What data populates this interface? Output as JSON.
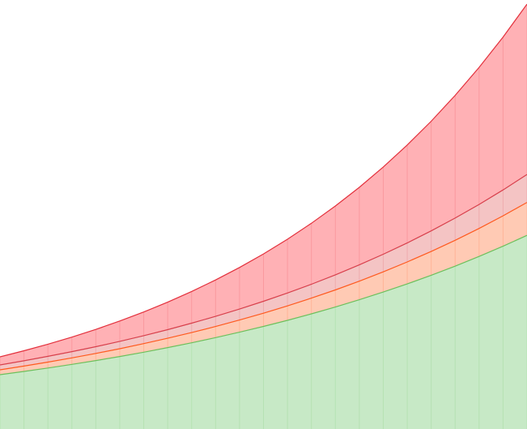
{
  "chart_data": {
    "type": "area",
    "x": [
      0,
      1,
      2,
      3,
      4,
      5,
      6,
      7,
      8,
      9,
      10,
      11,
      12,
      13,
      14,
      15,
      16,
      17,
      18,
      19,
      20,
      21,
      22
    ],
    "xlim": [
      0,
      22
    ],
    "ylim": [
      0,
      529
    ],
    "series": [
      {
        "color": "#e3303c",
        "fill": "#ffb1b5",
        "values": [
          89,
          96.5,
          104.6,
          113.3,
          122.8,
          133.2,
          144.3,
          156.4,
          169.6,
          183.8,
          199.2,
          215.9,
          234.0,
          253.7,
          275.0,
          298.0,
          323.1,
          350.2,
          379.5,
          411.4,
          445.9,
          483.3,
          523.9
        ]
      },
      {
        "color": "#d8404c",
        "fill": "#f4c4c4",
        "values": [
          79,
          84.1,
          89.6,
          95.4,
          101.5,
          108.1,
          115.1,
          122.5,
          130.5,
          138.9,
          147.9,
          157.5,
          167.7,
          178.5,
          190.1,
          202.4,
          215.5,
          229.4,
          244.3,
          260.1,
          276.9,
          294.8,
          313.9
        ]
      },
      {
        "color": "#ff5a1f",
        "fill": "#ffcab4",
        "values": [
          73,
          77.6,
          82.5,
          87.7,
          93.2,
          99.0,
          105.3,
          111.9,
          118.9,
          126.4,
          134.4,
          142.8,
          151.8,
          161.4,
          171.5,
          182.3,
          193.8,
          206.0,
          218.9,
          232.7,
          247.3,
          262.9,
          279.4
        ]
      },
      {
        "color": "#6cc05c",
        "fill": "#c7e9c6",
        "values": [
          67,
          71.0,
          75.2,
          79.7,
          84.4,
          89.4,
          94.7,
          100.4,
          106.3,
          112.7,
          119.4,
          126.5,
          134.0,
          142.0,
          150.4,
          159.4,
          168.9,
          178.9,
          189.6,
          200.8,
          212.8,
          225.4,
          238.8
        ]
      }
    ]
  }
}
